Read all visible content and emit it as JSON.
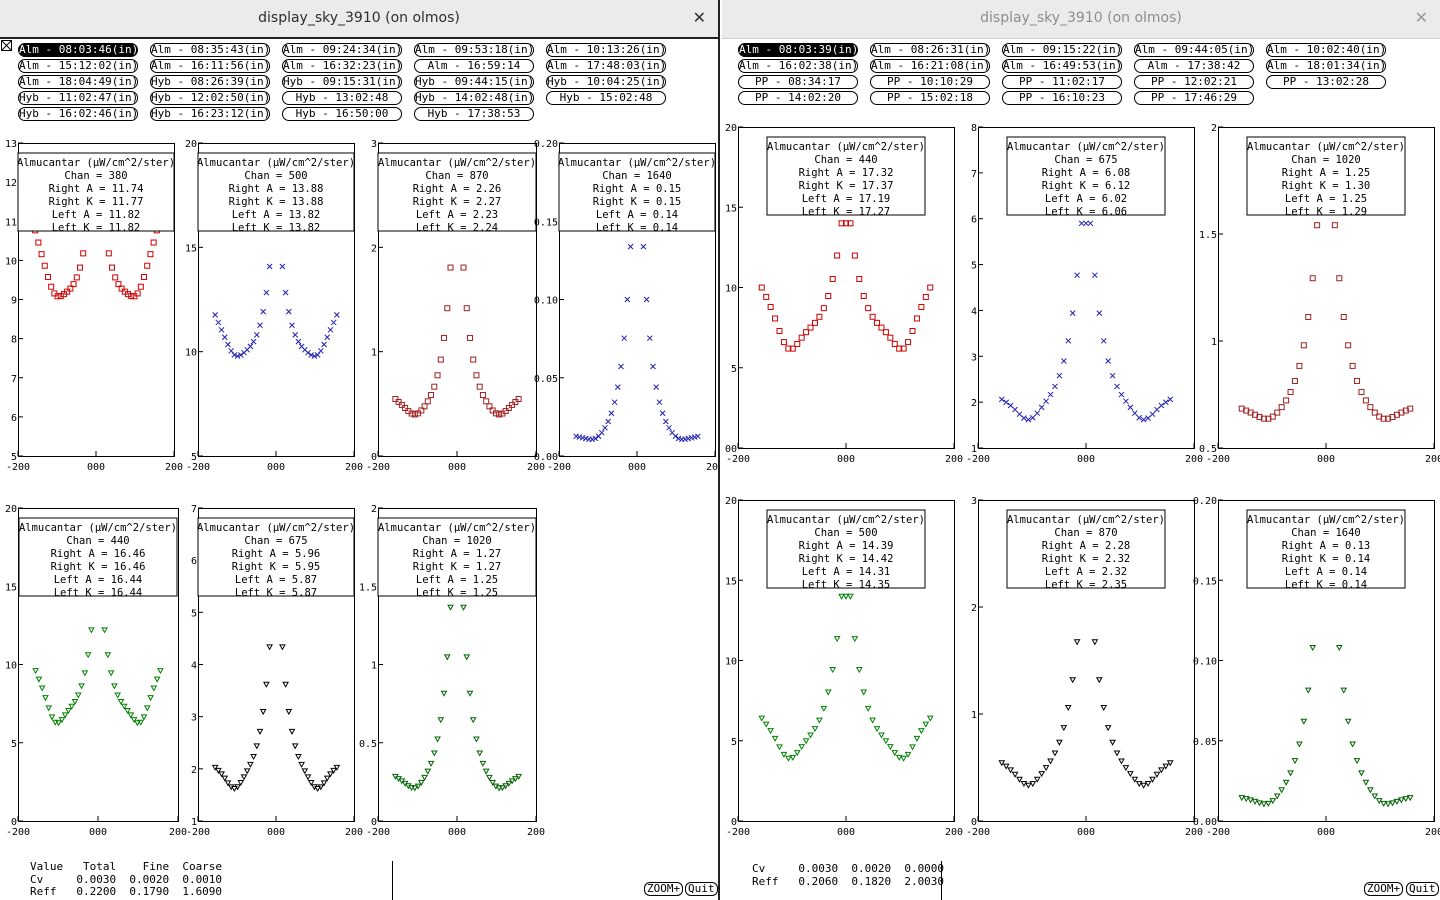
{
  "windows": [
    {
      "title": "display_sky_3910 (on olmos)",
      "buttons": [
        [
          "Alm - 08:03:46(in)",
          "Alm - 08:35:43(in)",
          "Alm - 09:24:34(in)",
          "Alm - 09:53:18(in)",
          "Alm - 10:13:26(in)"
        ],
        [
          "Alm - 15:12:02(in)",
          "Alm - 16:11:56(in)",
          "Alm - 16:32:23(in)",
          "Alm - 16:59:14",
          "Alm - 17:48:03(in)"
        ],
        [
          "Alm - 18:04:49(in)",
          "Hyb - 08:26:39(in)",
          "Hyb - 09:15:31(in)",
          "Hyb - 09:44:15(in)",
          "Hyb - 10:04:25(in)"
        ],
        [
          "Hyb - 11:02:47(in)",
          "Hyb - 12:02:50(in)",
          "Hyb - 13:02:48",
          "Hyb - 14:02:48(in)",
          "Hyb - 15:02:48"
        ],
        [
          "Hyb - 16:02:46(in)",
          "Hyb - 16:23:12(in)",
          "Hyb - 16:50:00",
          "Hyb - 17:38:53"
        ]
      ],
      "plots": [
        {
          "ytick_labels": [
            "5",
            "6",
            "7",
            "8",
            "9",
            "10",
            "11",
            "12",
            "13"
          ],
          "xtick_labels": [
            "-200",
            "000",
            "200"
          ],
          "legend": [
            "Almucantar (μW/cm^2/ster)",
            "Chan = 380",
            "Right A = 11.74",
            "Right K = 11.77",
            "Left A = 11.82",
            "Left K = 11.82"
          ]
        },
        {
          "ytick_labels": [
            "5",
            "10",
            "15",
            "20"
          ],
          "xtick_labels": [
            "-200",
            "000",
            "200"
          ],
          "legend": [
            "Almucantar (μW/cm^2/ster)",
            "Chan = 500",
            "Right A = 13.88",
            "Right K = 13.88",
            "Left A = 13.82",
            "Left K = 13.82"
          ]
        },
        {
          "ytick_labels": [
            "0",
            "1",
            "2",
            "3"
          ],
          "xtick_labels": [
            "-200",
            "000",
            "200"
          ],
          "legend": [
            "Almucantar (μW/cm^2/ster)",
            "Chan = 870",
            "Right A = 2.26",
            "Right K = 2.27",
            "Left A = 2.23",
            "Left K = 2.24"
          ]
        },
        {
          "ytick_labels": [
            "0.00",
            "0.05",
            "0.10",
            "0.15",
            "0.20"
          ],
          "xtick_labels": [
            "-200",
            "000",
            "200"
          ],
          "legend": [
            "Almucantar (μW/cm^2/ster)",
            "Chan = 1640",
            "Right A = 0.15",
            "Right K = 0.15",
            "Left A = 0.14",
            "Left K = 0.14"
          ]
        },
        {
          "ytick_labels": [
            "0",
            "5",
            "10",
            "15",
            "20"
          ],
          "xtick_labels": [
            "-200",
            "000",
            "200"
          ],
          "legend": [
            "Almucantar (μW/cm^2/ster)",
            "Chan = 440",
            "Right A = 16.46",
            "Right K = 16.46",
            "Left A = 16.44",
            "Left K = 16.44"
          ]
        },
        {
          "ytick_labels": [
            "1",
            "2",
            "3",
            "4",
            "5",
            "6",
            "7"
          ],
          "xtick_labels": [
            "-200",
            "000",
            "200"
          ],
          "legend": [
            "Almucantar (μW/cm^2/ster)",
            "Chan = 675",
            "Right A = 5.96",
            "Right K = 5.95",
            "Left A = 5.87",
            "Left K = 5.87"
          ]
        },
        {
          "ytick_labels": [
            "0",
            "0.5",
            "1",
            "1.5",
            "2"
          ],
          "xtick_labels": [
            "-200",
            "000",
            "200"
          ],
          "legend": [
            "Almucantar (μW/cm^2/ster)",
            "Chan = 1020",
            "Right A = 1.27",
            "Right K = 1.27",
            "Left A = 1.25",
            "Left K = 1.25"
          ]
        }
      ],
      "table": [
        [
          "Value",
          "Total",
          "Fine",
          "Coarse"
        ],
        [
          "Cv",
          "0.0030",
          "0.0020",
          "0.0010"
        ],
        [
          "Reff",
          "0.2200",
          "0.1790",
          "1.6090"
        ]
      ],
      "zoom_label": "ZOOM+",
      "quit_label": "Quit"
    },
    {
      "title": "display_sky_3910 (on olmos)",
      "buttons": [
        [
          "Alm - 08:03:39(in)",
          "Alm - 08:26:31(in)",
          "Alm - 09:15:22(in)",
          "Alm - 09:44:05(in)",
          "Alm - 10:02:40(in)"
        ],
        [
          "Alm - 16:02:38(in)",
          "Alm - 16:21:08(in)",
          "Alm - 16:49:53(in)",
          "Alm - 17:38:42",
          "Alm - 18:01:34(in)"
        ],
        [
          "PP - 08:34:17",
          "PP - 10:10:29",
          "PP - 11:02:17",
          "PP - 12:02:21",
          "PP - 13:02:28"
        ],
        [
          "PP - 14:02:20",
          "PP - 15:02:18",
          "PP - 16:10:23",
          "PP - 17:46:29"
        ]
      ],
      "plots": [
        {
          "ytick_labels": [
            "00",
            "5",
            "10",
            "15",
            "20"
          ],
          "xtick_labels": [
            "-200",
            "000",
            "200"
          ],
          "legend": [
            "Almucantar (μW/cm^2/ster)",
            "Chan = 440",
            "Right A = 17.32",
            "Right K = 17.37",
            "Left A = 17.19",
            "Left K = 17.27"
          ]
        },
        {
          "ytick_labels": [
            "1",
            "2",
            "3",
            "4",
            "5",
            "6",
            "7",
            "8"
          ],
          "xtick_labels": [
            "-200",
            "000",
            "200"
          ],
          "legend": [
            "Almucantar (μW/cm^2/ster)",
            "Chan = 675",
            "Right A = 6.08",
            "Right K = 6.12",
            "Left A = 6.02",
            "Left K = 6.06"
          ]
        },
        {
          "ytick_labels": [
            "0.5",
            "1",
            "1.5",
            "2"
          ],
          "xtick_labels": [
            "-200",
            "000",
            "200"
          ],
          "legend": [
            "Almucantar (μW/cm^2/ster)",
            "Chan = 1020",
            "Right A = 1.25",
            "Right K = 1.30",
            "Left A = 1.25",
            "Left K = 1.29"
          ]
        },
        {
          "ytick_labels": [
            "0",
            "5",
            "10",
            "15",
            "20"
          ],
          "xtick_labels": [
            "-200",
            "000",
            "200"
          ],
          "legend": [
            "Almucantar (μW/cm^2/ster)",
            "Chan = 500",
            "Right A = 14.39",
            "Right K = 14.42",
            "Left A = 14.31",
            "Left K = 14.35"
          ]
        },
        {
          "ytick_labels": [
            "0",
            "1",
            "2",
            "3"
          ],
          "xtick_labels": [
            "-200",
            "000",
            "200"
          ],
          "legend": [
            "Almucantar (μW/cm^2/ster)",
            "Chan = 870",
            "Right A = 2.28",
            "Right K = 2.32",
            "Left A = 2.32",
            "Left K = 2.35"
          ]
        },
        {
          "ytick_labels": [
            "0.00",
            "0.05",
            "0.10",
            "0.15",
            "0.20"
          ],
          "xtick_labels": [
            "-200",
            "000",
            "200"
          ],
          "legend": [
            "Almucantar (μW/cm^2/ster)",
            "Chan = 1640",
            "Right A = 0.13",
            "Right K = 0.14",
            "Left A = 0.14",
            "Left K = 0.14"
          ]
        }
      ],
      "table": [
        [
          "Cv",
          "0.0030",
          "0.0020",
          "0.0000"
        ],
        [
          "Reff",
          "0.2060",
          "0.1820",
          "2.0030"
        ]
      ],
      "zoom_label": "ZOOM+",
      "quit_label": "Quit"
    }
  ],
  "icons": {
    "close": "close-icon",
    "corner": "x-box-icon"
  }
}
